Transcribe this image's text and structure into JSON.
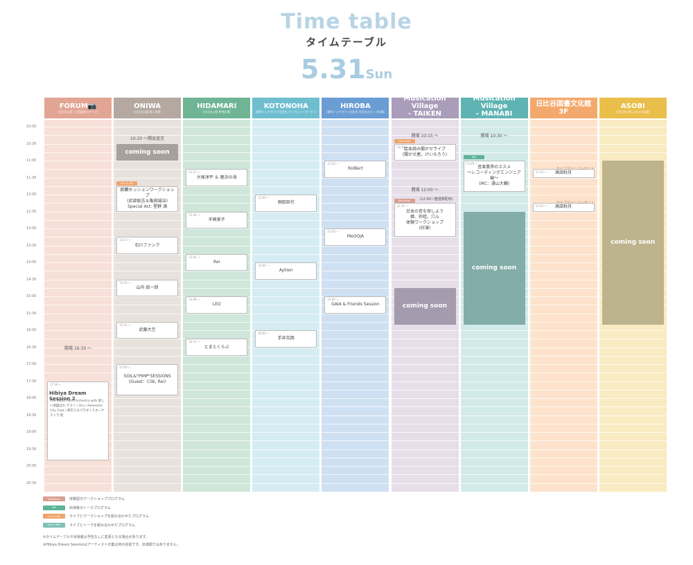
{
  "header": {
    "title_en": "Time table",
    "title_ja": "タイムテーブル",
    "date": "5.31",
    "day": "Sun"
  },
  "times": [
    "10:00",
    "10:30",
    "11:00",
    "11:30",
    "12:00",
    "12:30",
    "13:00",
    "13:30",
    "14:00",
    "14:30",
    "15:00",
    "15:30",
    "16:00",
    "16:30",
    "17:00",
    "17:30",
    "18:00",
    "18:30",
    "19:00",
    "19:30",
    "20:00",
    "20:30"
  ],
  "columns": [
    {
      "id": "forum",
      "name": "FORUM📷",
      "sub": "（日比谷公園・大音楽堂ステージ）",
      "head": "#e2a594",
      "body": "#f7e0d8"
    },
    {
      "id": "oniwa",
      "name": "ONIWA",
      "sub": "（日比谷公園 第二花壇）",
      "head": "#b4a8a0",
      "body": "#e8e2dc"
    },
    {
      "id": "hidamari",
      "name": "HIDAMARI",
      "sub": "（日比谷公園 草地広場）",
      "head": "#6fb595",
      "body": "#cfe6da"
    },
    {
      "id": "kotonoha",
      "name": "KOTONOHA",
      "sub": "（東京ミッドタウン日比谷 パークビューガーデン）",
      "head": "#6fbecf",
      "body": "#d5ecf2"
    },
    {
      "id": "hiroba",
      "name": "HIROBA",
      "sub": "（東京ミッドタウン日比谷 日比谷ステップ広場）",
      "head": "#6a9dd3",
      "body": "#cfe0f3"
    },
    {
      "id": "taiken",
      "name": "Musication Village\n- TAIKEN",
      "sub": "（日比谷図書文化館 地下）",
      "head": "#a99dba",
      "body": "#e6dfea"
    },
    {
      "id": "manabi",
      "name": "Musication Village\n- MANABI",
      "sub": "（日比谷図書文化館 大ホール）",
      "head": "#5fb3b3",
      "body": "#d2eaea"
    },
    {
      "id": "toshokan",
      "name": "日比谷図書文化館\n3F",
      "sub": "",
      "head": "#f4a96c",
      "body": "#fde3cd"
    },
    {
      "id": "asobi",
      "name": "ASOBI",
      "sub": "（日比谷公園 にれのき広場）",
      "head": "#e9be4b",
      "body": "#f9ebc2"
    }
  ],
  "events": [
    {
      "col": 0,
      "start": "17:30",
      "end": "19:50",
      "time": "17:30 〜",
      "name": "Hibiya Dream Session 2",
      "desc": "The Music Park Orchestra with 新しい地図ほか ゲスト / Uru / Awesome City Club / 東京スカパラダイスオーケストラ 他"
    },
    {
      "col": 1,
      "start": "11:45",
      "end": "12:30",
      "time": "11:45 〜",
      "name": "武蔵セッションワークショップ\n(武部聡志＆亀田誠治)\nSpecial Act: 星野 源"
    },
    {
      "col": 1,
      "start": "13:15",
      "end": "13:45",
      "time": "13:15 〜",
      "name": "石川ファンク"
    },
    {
      "col": 1,
      "start": "14:30",
      "end": "15:00",
      "time": "14:30 〜",
      "name": "山内 総一郎"
    },
    {
      "col": 1,
      "start": "15:45",
      "end": "16:15",
      "time": "15:45 〜",
      "name": "武藤大空"
    },
    {
      "col": 1,
      "start": "17:00",
      "end": "17:55",
      "time": "17:00 〜",
      "name": "SOIL&\"PIMP\"SESSIONS\n(Guest：CSK, Rei)"
    },
    {
      "col": 2,
      "start": "11:15",
      "end": "11:45",
      "time": "11:15 〜",
      "name": "大塚淳平 ＆ 鹿浜の海"
    },
    {
      "col": 2,
      "start": "12:30",
      "end": "13:00",
      "time": "12:30 〜",
      "name": "半崎美子"
    },
    {
      "col": 2,
      "start": "13:45",
      "end": "14:15",
      "time": "13:45 〜",
      "name": "Rei"
    },
    {
      "col": 2,
      "start": "15:00",
      "end": "15:30",
      "time": "15:00 〜",
      "name": "LEO"
    },
    {
      "col": 2,
      "start": "16:15",
      "end": "16:45",
      "time": "16:15 〜",
      "name": "とまとくらぶ"
    },
    {
      "col": 3,
      "start": "12:00",
      "end": "12:30",
      "time": "12:00 〜",
      "name": "桐田栞代"
    },
    {
      "col": 3,
      "start": "14:00",
      "end": "14:30",
      "time": "14:00 〜",
      "name": "Ayliien"
    },
    {
      "col": 3,
      "start": "16:00",
      "end": "16:30",
      "time": "16:00 〜",
      "name": "手井克朗"
    },
    {
      "col": 4,
      "start": "11:00",
      "end": "11:30",
      "time": "11:00 〜",
      "name": "RolBert"
    },
    {
      "col": 4,
      "start": "13:00",
      "end": "13:30",
      "time": "13:00 〜",
      "name": "MeOOJA"
    },
    {
      "col": 4,
      "start": "15:00",
      "end": "15:30",
      "time": "15:00 〜",
      "name": "GAIA & Friends Session"
    },
    {
      "col": 5,
      "start": "10:30",
      "end": "11:00",
      "time": "10:30 〜",
      "name": "絵本読み聞かせライブ\n(聞かせ屋。けいたろう)"
    },
    {
      "col": 5,
      "start": "12:15",
      "end": "13:15",
      "time": "12:15 〜",
      "name": "日本の音を探しよう\n蝉、鈴蛙、穴ん\n体験ワークショップ\n(好演)"
    },
    {
      "col": 6,
      "start": "11:00",
      "end": "11:55",
      "time": "11:00 〜",
      "name": "音楽業界のススメ\n〜レコーディングエンジニア編〜\n(MC：湯山大輔)"
    },
    {
      "col": 7,
      "start": "11:15",
      "end": "11:30",
      "time": "11:15 〜",
      "name": "高田秋月"
    },
    {
      "col": 7,
      "start": "12:15",
      "end": "12:30",
      "time": "12:15 〜",
      "name": "高田秋月"
    }
  ],
  "coming": [
    {
      "col": 1,
      "start": "10:30",
      "end": "11:00",
      "label": "coming soon",
      "color": "#a8a19b"
    },
    {
      "col": 5,
      "start": "14:45",
      "end": "15:50",
      "label": "coming soon",
      "color": "#a49cae"
    },
    {
      "col": 6,
      "start": "12:30",
      "end": "15:50",
      "label": "coming soon",
      "color": "#83ada9"
    },
    {
      "col": 8,
      "start": "11:00",
      "end": "15:50",
      "label": "coming soon",
      "color": "#bdb38c"
    }
  ],
  "notes": [
    {
      "col": 0,
      "at": "16:30",
      "text": "開場 16:30 〜"
    },
    {
      "col": 1,
      "at": "10:20",
      "text": "10:20 〜開会宣言"
    },
    {
      "col": 5,
      "at": "10:15",
      "text": "開場 10:15 〜"
    },
    {
      "col": 5,
      "at": "11:50",
      "text": "開場 12:00 〜"
    },
    {
      "col": 6,
      "at": "10:15",
      "text": "開場 10:30 〜"
    },
    {
      "col": 7,
      "at": "11:15",
      "text": "ライブラリーコンサート"
    },
    {
      "col": 7,
      "at": "12:15",
      "text": "ライブラリーコンサート"
    }
  ],
  "tags": [
    {
      "col": 1,
      "at": "11:37",
      "label": "Live & WS",
      "color": "#f0a36a"
    },
    {
      "col": 5,
      "at": "10:22",
      "label": "Live & WS",
      "color": "#f0a36a"
    },
    {
      "col": 5,
      "at": "12:07",
      "label": "Workshop",
      "color": "#d99f8f"
    },
    {
      "col": 6,
      "at": "10:50",
      "label": "Talk",
      "color": "#5fb399"
    }
  ],
  "taiken_note": "(12:00〜整理券配布)",
  "legend": [
    {
      "label": "Workshop",
      "text": "体験型のワークショッププログラム",
      "color": "#d99f8f"
    },
    {
      "label": "Talk",
      "text": "出演者のトークプログラム",
      "color": "#5fb399"
    },
    {
      "label": "Live & WS",
      "text": "ライブとワークショップを組み合わせたプログラム",
      "color": "#f0a36a"
    },
    {
      "label": "Live & Talk",
      "text": "ライブとトークを組み合わせたプログラム",
      "color": "#7fc0b3"
    }
  ],
  "footnotes": [
    "※タイムテーブルや出演者は予告なしに変更となる場合があります。",
    "※Hibiya Dream Sessionはアーティストの集合体の名前です。出演順ではありません。"
  ]
}
